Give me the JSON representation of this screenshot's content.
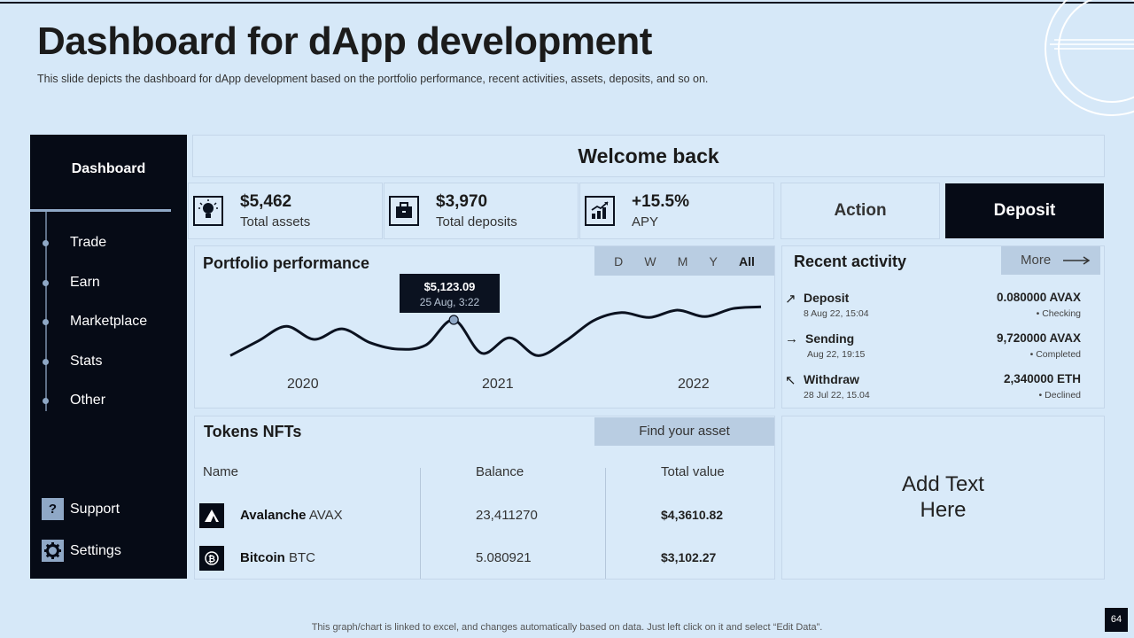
{
  "slide": {
    "title": "Dashboard for dApp development",
    "subtitle": "This slide depicts the dashboard  for dApp development  based on the portfolio  performance,  recent activities, assets, deposits, and so on.",
    "footer": "This graph/chart is linked to excel,  and changes automatically based on data. Just left click on it and select “Edit Data”.",
    "page_number": "64"
  },
  "sidebar": {
    "title": "Dashboard",
    "items": [
      {
        "label": "Trade"
      },
      {
        "label": "Earn"
      },
      {
        "label": "Marketplace"
      },
      {
        "label": "Stats"
      },
      {
        "label": "Other"
      }
    ],
    "support_label": "Support",
    "support_icon": "?",
    "settings_label": "Settings"
  },
  "header": {
    "welcome": "Welcome back"
  },
  "stats": [
    {
      "value": "$5,462",
      "label": "Total assets",
      "icon": "lightbulb-icon"
    },
    {
      "value": "$3,970",
      "label": "Total deposits",
      "icon": "briefcase-icon"
    },
    {
      "value": "+15.5%",
      "label": "APY",
      "icon": "growth-chart-icon"
    }
  ],
  "actions": {
    "action_label": "Action",
    "deposit_label": "Deposit"
  },
  "portfolio": {
    "title": "Portfolio performance",
    "ranges": [
      "D",
      "W",
      "M",
      "Y",
      "All"
    ],
    "active_range": "All",
    "tooltip_value": "$5,123.09",
    "tooltip_date": "25 Aug, 3:22",
    "years": [
      "2020",
      "2021",
      "2022"
    ]
  },
  "chart_data": {
    "type": "line",
    "title": "Portfolio performance",
    "x_tick_labels": [
      "2020",
      "2021",
      "2022"
    ],
    "series": [
      {
        "name": "Portfolio value",
        "values": [
          40,
          58,
          76,
          60,
          73,
          56,
          48,
          53,
          84,
          43,
          62,
          40,
          58,
          83,
          93,
          87,
          96,
          88,
          98,
          100
        ]
      }
    ],
    "highlight": {
      "index": 8,
      "label": "$5,123.09",
      "date": "25 Aug, 3:22"
    },
    "ylim": [
      0,
      120
    ],
    "grid": false
  },
  "recent": {
    "title": "Recent activity",
    "more_label": "More",
    "rows": [
      {
        "name": "Deposit",
        "date": "8 Aug 22, 15:04",
        "amount": "0.080000  AVAX",
        "status": "•  Checking",
        "arrow": "↗"
      },
      {
        "name": "Sending",
        "date": "Aug 22, 19:15",
        "amount": "9,720000  AVAX",
        "status": "•  Completed",
        "arrow": "→"
      },
      {
        "name": "Withdraw",
        "date": "28 Jul 22, 15.04",
        "amount": "2,340000  ETH",
        "status": "•  Declined",
        "arrow": "↖"
      }
    ]
  },
  "tokens": {
    "title": "Tokens  NFTs",
    "find_label": "Find your asset",
    "headers": {
      "name": "Name",
      "balance": "Balance",
      "value": "Total value"
    },
    "rows": [
      {
        "name": "Avalanche",
        "ticker": " AVAX",
        "balance": "23,411270",
        "value": "$4,3610.82"
      },
      {
        "name": "Bitcoin",
        "ticker": " BTC",
        "balance": "5.080921",
        "value": "$3,102.27"
      }
    ]
  },
  "placeholder": {
    "text_line1": "Add Text",
    "text_line2": "Here"
  }
}
